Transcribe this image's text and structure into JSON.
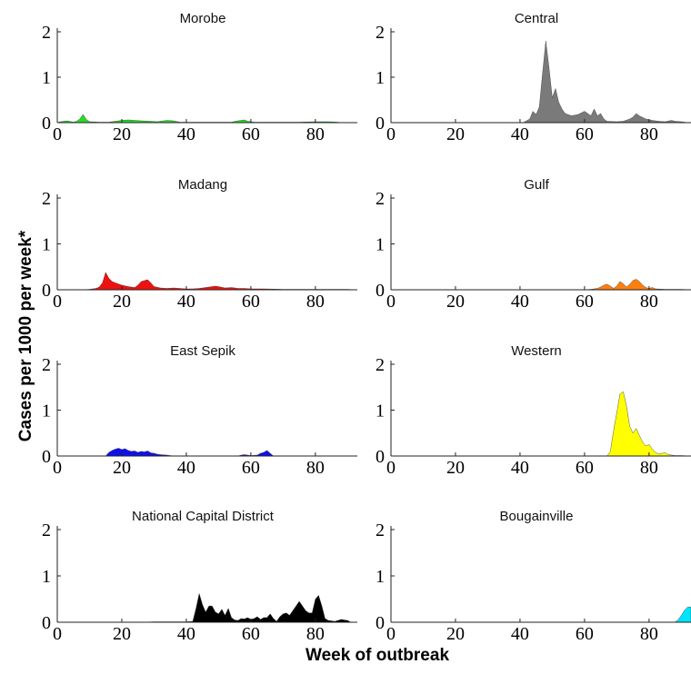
{
  "figure": {
    "ylabel": "Cases per 1000 per week*",
    "xlabel": "Week of outbreak"
  },
  "chart_data": [
    {
      "type": "area",
      "title": "Morobe",
      "color": "#22dd22",
      "xlim": [
        0,
        93
      ],
      "ylim": [
        0,
        2
      ],
      "xticks": [
        0,
        20,
        40,
        60,
        80
      ],
      "yticks": [
        0,
        1,
        2
      ],
      "x": [
        0,
        1,
        3,
        5,
        6,
        7,
        8,
        9,
        10,
        13,
        16,
        18,
        20,
        22,
        24,
        26,
        29,
        31,
        34,
        36,
        38,
        42,
        46,
        50,
        54,
        56,
        58,
        59,
        61,
        64,
        70,
        75,
        80,
        84,
        87,
        88
      ],
      "y": [
        0,
        0.02,
        0.04,
        0.01,
        0.03,
        0.08,
        0.18,
        0.07,
        0.02,
        0.01,
        0.01,
        0.03,
        0.05,
        0.06,
        0.05,
        0.04,
        0.03,
        0.02,
        0.05,
        0.04,
        0.01,
        0.01,
        0.01,
        0.01,
        0.01,
        0.04,
        0.06,
        0.03,
        0.01,
        0.01,
        0.01,
        0.01,
        0.02,
        0.02,
        0.01,
        0
      ]
    },
    {
      "type": "area",
      "title": "Central",
      "color": "#7a7a7a",
      "xlim": [
        0,
        93
      ],
      "ylim": [
        0,
        2
      ],
      "xticks": [
        0,
        20,
        40,
        60,
        80
      ],
      "yticks": [
        0,
        1,
        2
      ],
      "x": [
        41,
        43,
        44,
        45,
        46,
        47,
        48,
        49,
        50,
        51,
        52,
        53,
        54,
        56,
        58,
        60,
        61,
        62,
        63,
        64,
        65,
        66,
        67,
        70,
        72,
        74,
        75,
        76,
        77,
        79,
        81,
        83,
        85,
        87,
        88,
        90,
        92
      ],
      "y": [
        0,
        0.08,
        0.25,
        0.18,
        0.35,
        1.1,
        1.8,
        1.2,
        0.55,
        0.75,
        0.45,
        0.3,
        0.2,
        0.15,
        0.18,
        0.25,
        0.2,
        0.15,
        0.3,
        0.15,
        0.2,
        0.08,
        0.03,
        0.02,
        0.03,
        0.08,
        0.12,
        0.2,
        0.15,
        0.08,
        0.05,
        0.03,
        0.02,
        0.05,
        0.03,
        0.02,
        0
      ]
    },
    {
      "type": "area",
      "title": "Madang",
      "color": "#ee1111",
      "xlim": [
        0,
        93
      ],
      "ylim": [
        0,
        2
      ],
      "xticks": [
        0,
        20,
        40,
        60,
        80
      ],
      "yticks": [
        0,
        1,
        2
      ],
      "x": [
        8,
        10,
        12,
        13,
        14,
        15,
        16,
        17,
        18,
        20,
        22,
        24,
        25,
        26,
        27,
        28,
        29,
        30,
        32,
        34,
        36,
        38,
        40,
        42,
        44,
        46,
        48,
        49,
        50,
        52,
        54,
        56,
        58,
        60,
        64,
        70,
        75,
        80,
        86,
        90,
        92
      ],
      "y": [
        0,
        0.01,
        0.03,
        0.06,
        0.15,
        0.38,
        0.25,
        0.18,
        0.15,
        0.1,
        0.07,
        0.05,
        0.1,
        0.18,
        0.2,
        0.22,
        0.15,
        0.07,
        0.04,
        0.03,
        0.04,
        0.03,
        0.02,
        0.02,
        0.03,
        0.05,
        0.07,
        0.08,
        0.07,
        0.04,
        0.05,
        0.03,
        0.03,
        0.02,
        0.02,
        0.01,
        0.01,
        0.01,
        0.01,
        0.01,
        0
      ]
    },
    {
      "type": "area",
      "title": "Gulf",
      "color": "#ff7f0e",
      "xlim": [
        0,
        93
      ],
      "ylim": [
        0,
        2
      ],
      "xticks": [
        0,
        20,
        40,
        60,
        80
      ],
      "yticks": [
        0,
        1,
        2
      ],
      "x": [
        60,
        62,
        64,
        65,
        66,
        67,
        68,
        69,
        70,
        71,
        72,
        73,
        74,
        75,
        76,
        77,
        78,
        79,
        80,
        81,
        82,
        85,
        88,
        90,
        93
      ],
      "y": [
        0,
        0.01,
        0.03,
        0.06,
        0.1,
        0.12,
        0.08,
        0.03,
        0.08,
        0.18,
        0.13,
        0.06,
        0.12,
        0.2,
        0.23,
        0.18,
        0.1,
        0.05,
        0.03,
        0.05,
        0.02,
        0.01,
        0.01,
        0.01,
        0
      ]
    },
    {
      "type": "area",
      "title": "East Sepik",
      "color": "#1010ee",
      "xlim": [
        0,
        93
      ],
      "ylim": [
        0,
        2
      ],
      "xticks": [
        0,
        20,
        40,
        60,
        80
      ],
      "yticks": [
        0,
        1,
        2
      ],
      "x": [
        15,
        16,
        17,
        18,
        19,
        20,
        21,
        22,
        23,
        24,
        25,
        26,
        27,
        28,
        29,
        30,
        31,
        32,
        34,
        36,
        56,
        57,
        58,
        59,
        60,
        62,
        63,
        64,
        65,
        66,
        67
      ],
      "y": [
        0,
        0.08,
        0.12,
        0.15,
        0.17,
        0.14,
        0.16,
        0.12,
        0.1,
        0.11,
        0.08,
        0.1,
        0.09,
        0.11,
        0.07,
        0.06,
        0.04,
        0.03,
        0.02,
        0,
        0,
        0.02,
        0.03,
        0.02,
        0.01,
        0.02,
        0.06,
        0.08,
        0.12,
        0.06,
        0
      ]
    },
    {
      "type": "area",
      "title": "Western",
      "color": "#ffff00",
      "xlim": [
        0,
        93
      ],
      "ylim": [
        0,
        2
      ],
      "xticks": [
        0,
        20,
        40,
        60,
        80
      ],
      "yticks": [
        0,
        1,
        2
      ],
      "x": [
        67,
        68,
        69,
        70,
        71,
        72,
        73,
        74,
        75,
        76,
        77,
        78,
        79,
        80,
        81,
        82,
        83,
        84,
        85,
        86,
        88,
        90,
        93
      ],
      "y": [
        0,
        0.1,
        0.55,
        0.95,
        1.35,
        1.4,
        1.1,
        0.65,
        0.5,
        0.6,
        0.45,
        0.3,
        0.22,
        0.25,
        0.15,
        0.08,
        0.04,
        0.06,
        0.07,
        0.03,
        0.01,
        0.01,
        0
      ]
    },
    {
      "type": "area",
      "title": "National Capital District",
      "color": "#000000",
      "xlim": [
        0,
        93
      ],
      "ylim": [
        0,
        2
      ],
      "xticks": [
        0,
        20,
        40,
        60,
        80
      ],
      "yticks": [
        0,
        1,
        2
      ],
      "x": [
        27,
        30,
        35,
        40,
        42,
        43,
        44,
        45,
        46,
        47,
        48,
        49,
        50,
        51,
        52,
        53,
        54,
        55,
        56,
        57,
        58,
        59,
        60,
        61,
        62,
        63,
        64,
        65,
        66,
        67,
        68,
        69,
        70,
        71,
        72,
        73,
        74,
        75,
        76,
        77,
        78,
        79,
        80,
        81,
        82,
        83,
        84,
        86,
        87,
        88,
        89,
        90,
        91
      ],
      "y": [
        0,
        0.01,
        0.01,
        0.01,
        0.02,
        0.3,
        0.62,
        0.38,
        0.22,
        0.35,
        0.35,
        0.22,
        0.18,
        0.28,
        0.15,
        0.3,
        0.1,
        0.05,
        0.04,
        0.08,
        0.07,
        0.1,
        0.06,
        0.08,
        0.12,
        0.06,
        0.1,
        0.1,
        0.18,
        0.08,
        0.02,
        0.12,
        0.18,
        0.2,
        0.15,
        0.25,
        0.35,
        0.45,
        0.35,
        0.25,
        0.2,
        0.2,
        0.5,
        0.58,
        0.35,
        0.08,
        0.04,
        0.02,
        0.04,
        0.06,
        0.05,
        0.04,
        0
      ]
    },
    {
      "type": "area",
      "title": "Bougainville",
      "color": "#00e5ff",
      "xlim": [
        0,
        93
      ],
      "ylim": [
        0,
        2
      ],
      "xticks": [
        0,
        20,
        40,
        60,
        80
      ],
      "yticks": [
        0,
        1,
        2
      ],
      "x": [
        88,
        89,
        90,
        91,
        92,
        93
      ],
      "y": [
        0,
        0.05,
        0.15,
        0.26,
        0.33,
        0.33
      ]
    }
  ]
}
